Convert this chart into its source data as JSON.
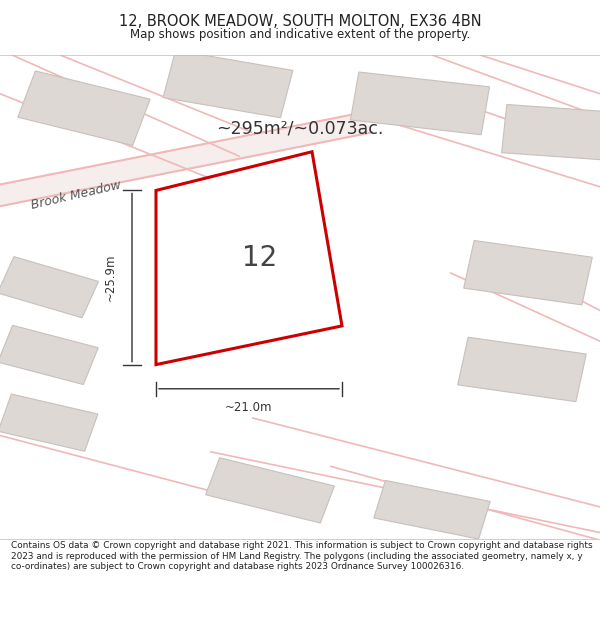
{
  "title": "12, BROOK MEADOW, SOUTH MOLTON, EX36 4BN",
  "subtitle": "Map shows position and indicative extent of the property.",
  "footer": "Contains OS data © Crown copyright and database right 2021. This information is subject to Crown copyright and database rights 2023 and is reproduced with the permission of HM Land Registry. The polygons (including the associated geometry, namely x, y co-ordinates) are subject to Crown copyright and database rights 2023 Ordnance Survey 100026316.",
  "area_label": "~295m²/~0.073ac.",
  "street_label": "Brook Meadow",
  "property_number": "12",
  "dim_width": "~21.0m",
  "dim_height": "~25.9m",
  "map_bg": "#ede8e5",
  "property_stroke": "#cc0000",
  "road_color": "#f0b8b8",
  "road_center": "#f5eeec",
  "building_fill": "#ddd8d4",
  "building_stroke": "#c8c0bc",
  "title_color": "#222222",
  "footer_color": "#222222",
  "dim_color": "#333333"
}
